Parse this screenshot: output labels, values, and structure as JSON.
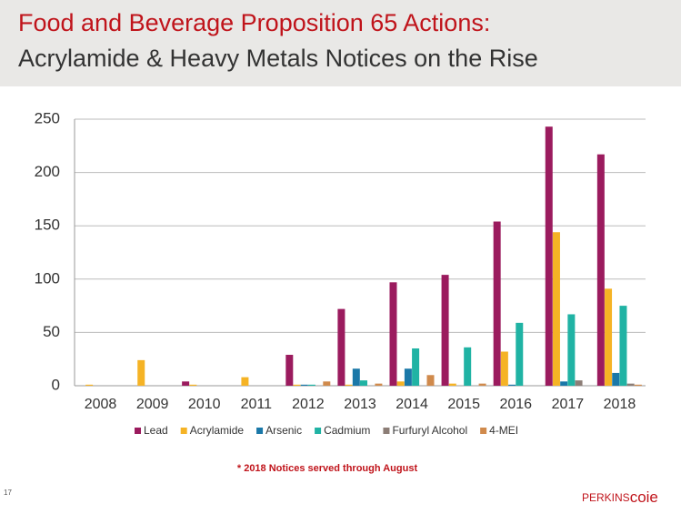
{
  "header": {
    "title": "Food and Beverage Proposition 65 Actions:",
    "subtitle": "Acrylamide & Heavy Metals Notices on the Rise"
  },
  "chart_data": {
    "type": "bar",
    "categories": [
      "2008",
      "2009",
      "2010",
      "2011",
      "2012",
      "2013",
      "2014",
      "2015",
      "2016",
      "2017",
      "2018"
    ],
    "series": [
      {
        "name": "Lead",
        "color": "#9b1b5e",
        "values": [
          0,
          0,
          4,
          0,
          29,
          72,
          97,
          104,
          154,
          243,
          217
        ]
      },
      {
        "name": "Acrylamide",
        "color": "#f5b325",
        "values": [
          1,
          24,
          1,
          8,
          1,
          1,
          4,
          2,
          32,
          144,
          91
        ]
      },
      {
        "name": "Arsenic",
        "color": "#1a78a8",
        "values": [
          0,
          0,
          0,
          0,
          1,
          16,
          16,
          0,
          1,
          4,
          12
        ]
      },
      {
        "name": "Cadmium",
        "color": "#20b3a4",
        "values": [
          0,
          0,
          0,
          0,
          1,
          5,
          35,
          36,
          59,
          67,
          75
        ]
      },
      {
        "name": "Furfuryl Alcohol",
        "color": "#8c7d76",
        "values": [
          0,
          0,
          0,
          0,
          0,
          0,
          0,
          0,
          0,
          5,
          2
        ]
      },
      {
        "name": "4-MEI",
        "color": "#d08a4c",
        "values": [
          0,
          0,
          0,
          0,
          4,
          2,
          10,
          2,
          0,
          0,
          1
        ]
      }
    ],
    "ylim": [
      0,
      250
    ],
    "yticks": [
      0,
      50,
      100,
      150,
      200,
      250
    ],
    "grid": true,
    "legend": "bottom"
  },
  "footnote": "* 2018 Notices served through August",
  "page_number": "17",
  "logo": {
    "strong": "PERKINS",
    "light": "coie"
  }
}
